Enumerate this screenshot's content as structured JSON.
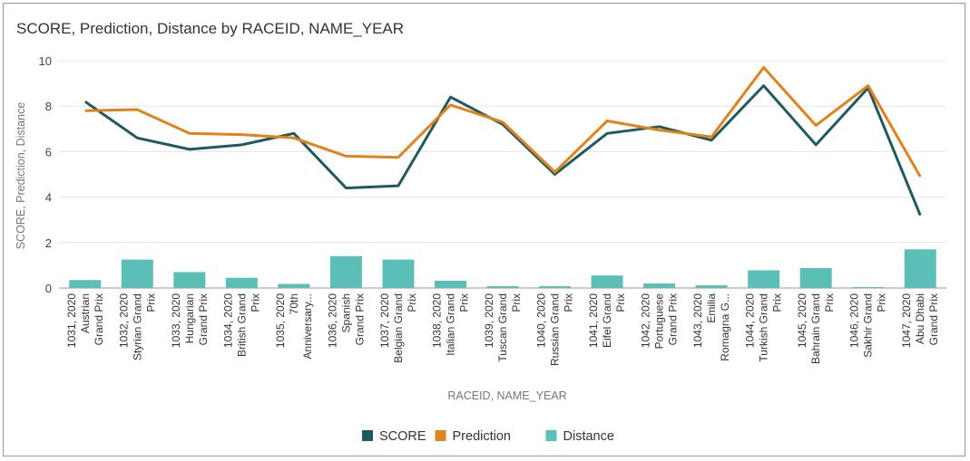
{
  "chart_data": {
    "type": "bar+line",
    "title": "SCORE, Prediction, Distance by RACEID, NAME_YEAR",
    "xlabel": "RACEID, NAME_YEAR",
    "ylabel": "SCORE, Prediction, Distance",
    "ylim": [
      0,
      10
    ],
    "yticks": [
      "0",
      "2",
      "4",
      "6",
      "8",
      "10"
    ],
    "grid": true,
    "legend_position": "bottom",
    "categories": [
      [
        "1031, 2020",
        "Austrian",
        "Grand Prix"
      ],
      [
        "1032, 2020",
        "Styrian Grand",
        "Prix"
      ],
      [
        "1033, 2020",
        "Hungarian",
        "Grand Prix"
      ],
      [
        "1034, 2020",
        "British Grand",
        "Prix"
      ],
      [
        "1035, 2020",
        "70th",
        "Anniversary..."
      ],
      [
        "1036, 2020",
        "Spanish",
        "Grand Prix"
      ],
      [
        "1037, 2020",
        "Belgian Grand",
        "Prix"
      ],
      [
        "1038, 2020",
        "Italian Grand",
        "Prix"
      ],
      [
        "1039, 2020",
        "Tuscan Grand",
        "Prix"
      ],
      [
        "1040, 2020",
        "Russian Grand",
        "Prix"
      ],
      [
        "1041, 2020",
        "Eifel Grand",
        "Prix"
      ],
      [
        "1042, 2020",
        "Portuguese",
        "Grand Prix"
      ],
      [
        "1043, 2020",
        "Emilia",
        "Romagna G..."
      ],
      [
        "1044, 2020",
        "Turkish Grand",
        "Prix"
      ],
      [
        "1045, 2020",
        "Bahrain Grand",
        "Prix"
      ],
      [
        "1046, 2020",
        "Sakhir Grand",
        "Prix"
      ],
      [
        "1047, 2020",
        "Abu Dhabi",
        "Grand Prix"
      ]
    ],
    "series": [
      {
        "name": "SCORE",
        "kind": "line",
        "color": "#1f5a5f",
        "values": [
          8.2,
          6.6,
          6.1,
          6.3,
          6.8,
          4.4,
          4.5,
          8.4,
          7.2,
          5.0,
          6.8,
          7.1,
          6.5,
          8.9,
          6.3,
          8.8,
          3.2
        ]
      },
      {
        "name": "Prediction",
        "kind": "line",
        "color": "#e0831c",
        "values": [
          7.8,
          7.85,
          6.8,
          6.75,
          6.6,
          5.8,
          5.75,
          8.05,
          7.3,
          5.1,
          7.35,
          6.95,
          6.65,
          9.7,
          7.15,
          8.9,
          4.9
        ]
      },
      {
        "name": "Distance",
        "kind": "bar",
        "color": "#5bbfb8",
        "values": [
          0.35,
          1.25,
          0.7,
          0.45,
          0.18,
          1.4,
          1.25,
          0.32,
          0.08,
          0.08,
          0.55,
          0.2,
          0.12,
          0.78,
          0.88,
          0.04,
          1.7
        ]
      }
    ]
  }
}
